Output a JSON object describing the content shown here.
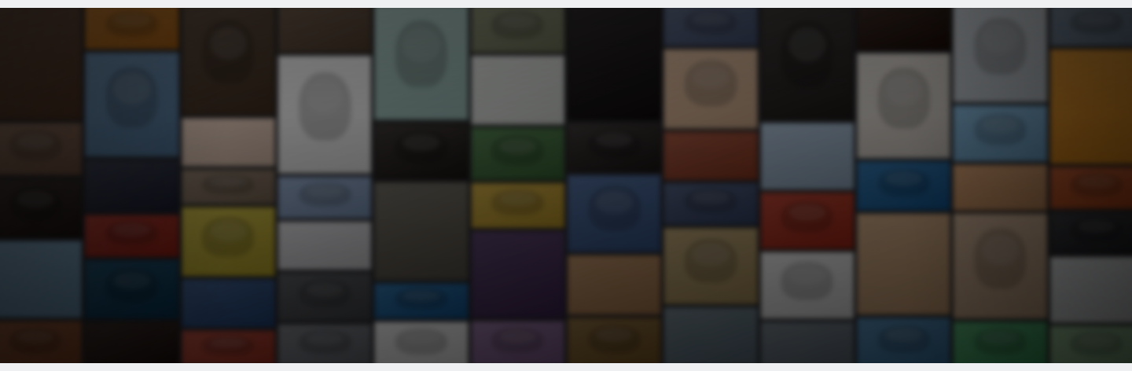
{
  "banner": {
    "columns": [
      [
        "#6b4e3e",
        "#8a6a58",
        "#3d3230",
        "#7fa6c4",
        "#9a5b3a"
      ],
      [
        "#c77b2a",
        "#6a8fb3",
        "#3a3d4f",
        "#b23a2f",
        "#1f4f6e",
        "#3b2e2a"
      ],
      [
        "#5d4a3c",
        "#e4c9b8",
        "#8f7c6a",
        "#c9b53b",
        "#3d5d8e",
        "#b8493a"
      ],
      [
        "#6e5a4a",
        "#f2f2f2",
        "#8fa7c9",
        "#d8d8dc",
        "#5a5c60",
        "#7a7d84"
      ],
      [
        "#a9c9c3",
        "#3a3532",
        "#6f6a60",
        "#2c6fa8",
        "#e9e9ea"
      ],
      [
        "#8b8f74",
        "#d9dcd8",
        "#4e7a4a",
        "#c8a43a",
        "#57406a",
        "#8e6f9a"
      ],
      [
        "#2e2a2a",
        "#3a3534",
        "#4d6a9a",
        "#b7895f",
        "#8b6a3a"
      ],
      [
        "#5f6c8c",
        "#d8b597",
        "#a0513a",
        "#4d5b7c",
        "#b39a6a",
        "#6d7e8a"
      ],
      [
        "#3d3937",
        "#9fb4c9",
        "#b8402f",
        "#dcdcdc",
        "#6f7a84"
      ],
      [
        "#3b2b25",
        "#d8d2cb",
        "#2c6fa8",
        "#c6a07a",
        "#4a7fa8"
      ],
      [
        "#cfd6dc",
        "#7fb3d8",
        "#d39a6b",
        "#c8a98c",
        "#4ba56a"
      ],
      [
        "#7b8da1",
        "#e9962a",
        "#c45a2d",
        "#3a3b3f",
        "#d4d6d8",
        "#8fb58a"
      ]
    ],
    "heights": [
      [
        0.33,
        0.15,
        0.17,
        0.22,
        0.13
      ],
      [
        0.13,
        0.3,
        0.15,
        0.12,
        0.17,
        0.13
      ],
      [
        0.32,
        0.14,
        0.1,
        0.2,
        0.14,
        0.1
      ],
      [
        0.14,
        0.34,
        0.12,
        0.14,
        0.14,
        0.12
      ],
      [
        0.33,
        0.16,
        0.28,
        0.1,
        0.13
      ],
      [
        0.14,
        0.2,
        0.15,
        0.13,
        0.25,
        0.13
      ],
      [
        0.33,
        0.14,
        0.22,
        0.17,
        0.14
      ],
      [
        0.12,
        0.23,
        0.14,
        0.12,
        0.22,
        0.17
      ],
      [
        0.33,
        0.19,
        0.16,
        0.19,
        0.13
      ],
      [
        0.13,
        0.3,
        0.14,
        0.29,
        0.14
      ],
      [
        0.28,
        0.16,
        0.13,
        0.3,
        0.13
      ],
      [
        0.12,
        0.33,
        0.12,
        0.12,
        0.19,
        0.12
      ]
    ]
  }
}
